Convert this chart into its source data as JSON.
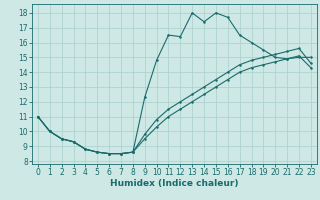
{
  "xlabel": "Humidex (Indice chaleur)",
  "background_color": "#cde8e5",
  "line_color": "#1a6b6b",
  "grid_color": "#aacfcc",
  "xlim": [
    -0.5,
    23.5
  ],
  "ylim": [
    7.8,
    18.6
  ],
  "yticks": [
    8,
    9,
    10,
    11,
    12,
    13,
    14,
    15,
    16,
    17,
    18
  ],
  "xticks": [
    0,
    1,
    2,
    3,
    4,
    5,
    6,
    7,
    8,
    9,
    10,
    11,
    12,
    13,
    14,
    15,
    16,
    17,
    18,
    19,
    20,
    21,
    22,
    23
  ],
  "series1_x": [
    0,
    1,
    2,
    3,
    4,
    5,
    6,
    7,
    8,
    9,
    10,
    11,
    12,
    13,
    14,
    15,
    16,
    17,
    18,
    19,
    20,
    21,
    22,
    23
  ],
  "series1_y": [
    11.0,
    10.0,
    9.5,
    9.3,
    8.8,
    8.6,
    8.5,
    8.5,
    8.6,
    12.3,
    14.8,
    16.5,
    16.4,
    18.0,
    17.4,
    18.0,
    17.7,
    16.5,
    16.0,
    15.5,
    15.0,
    14.9,
    15.0,
    15.0
  ],
  "series2_x": [
    0,
    1,
    2,
    3,
    4,
    5,
    6,
    7,
    8,
    9,
    10,
    11,
    12,
    13,
    14,
    15,
    16,
    17,
    18,
    19,
    20,
    21,
    22,
    23
  ],
  "series2_y": [
    11.0,
    10.0,
    9.5,
    9.3,
    8.8,
    8.6,
    8.5,
    8.5,
    8.6,
    9.8,
    10.8,
    11.5,
    12.0,
    12.5,
    13.0,
    13.5,
    14.0,
    14.5,
    14.8,
    15.0,
    15.2,
    15.4,
    15.6,
    14.6
  ],
  "series3_x": [
    0,
    1,
    2,
    3,
    4,
    5,
    6,
    7,
    8,
    9,
    10,
    11,
    12,
    13,
    14,
    15,
    16,
    17,
    18,
    19,
    20,
    21,
    22,
    23
  ],
  "series3_y": [
    11.0,
    10.0,
    9.5,
    9.3,
    8.8,
    8.6,
    8.5,
    8.5,
    8.6,
    9.5,
    10.3,
    11.0,
    11.5,
    12.0,
    12.5,
    13.0,
    13.5,
    14.0,
    14.3,
    14.5,
    14.7,
    14.9,
    15.1,
    14.3
  ],
  "tick_fontsize": 5.5,
  "xlabel_fontsize": 6.5
}
